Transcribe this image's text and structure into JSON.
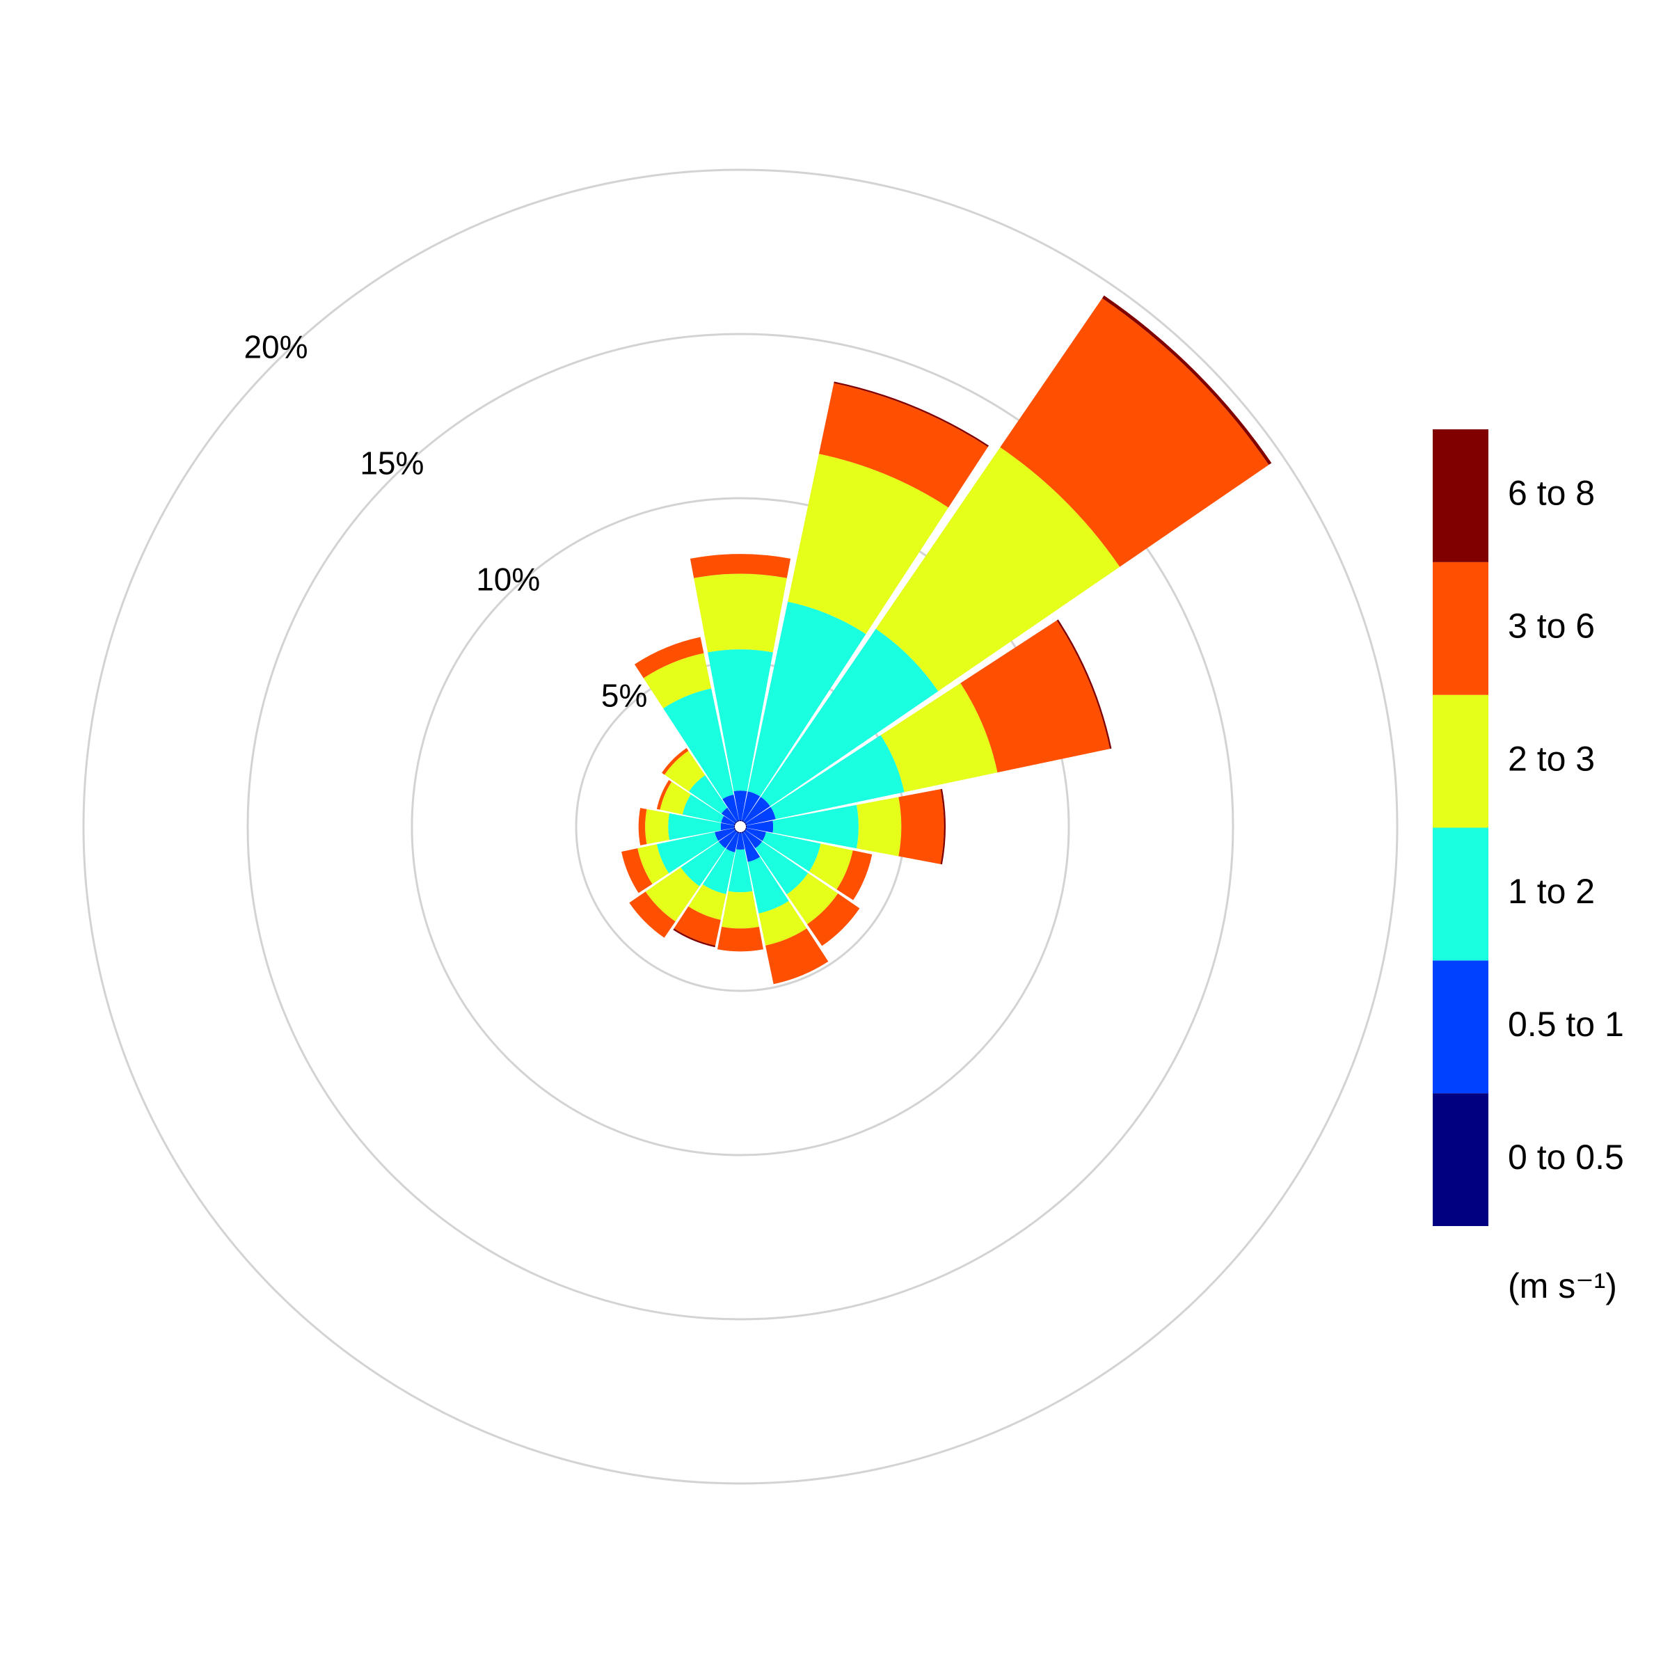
{
  "chart_data": {
    "type": "windrose",
    "x": [
      0,
      22.5,
      45,
      67.5,
      90,
      112.5,
      135,
      157.5,
      180,
      202.5,
      225,
      247.5,
      270,
      292.5,
      315,
      337.5
    ],
    "series": [
      {
        "name": "0 to 0.5",
        "color": "#000080",
        "values": [
          0.2,
          0.2,
          0.2,
          0.2,
          0.2,
          0.2,
          0.2,
          0.2,
          0.2,
          0.2,
          0.2,
          0.2,
          0.2,
          0.2,
          0.2,
          0.2
        ]
      },
      {
        "name": "0.5 to 1",
        "color": "#0040ff",
        "values": [
          0.9,
          0.9,
          0.9,
          0.9,
          0.8,
          0.6,
          0.6,
          0.9,
          0.5,
          0.6,
          0.6,
          0.6,
          0.4,
          0.4,
          0.5,
          0.8
        ]
      },
      {
        "name": "1 to 2",
        "color": "#19ffe0",
        "values": [
          4.3,
          5.9,
          6.2,
          4.0,
          2.6,
          1.7,
          1.7,
          1.6,
          1.3,
          1.3,
          1.4,
          1.8,
          1.6,
          1.2,
          1.2,
          3.3
        ]
      },
      {
        "name": "2 to 3",
        "color": "#e5ff1a",
        "values": [
          2.3,
          4.6,
          6.7,
          2.9,
          1.3,
          1.0,
          1.1,
          1.0,
          1.1,
          0.8,
          1.3,
          0.6,
          0.7,
          0.7,
          0.9,
          1.1
        ]
      },
      {
        "name": "3 to 6",
        "color": "#ff4f00",
        "values": [
          0.6,
          2.2,
          5.5,
          3.5,
          1.3,
          0.6,
          0.8,
          1.2,
          0.7,
          0.8,
          0.6,
          0.5,
          0.2,
          0.1,
          0.1,
          0.5
        ]
      },
      {
        "name": "6 to 8",
        "color": "#800000",
        "values": [
          0,
          0.05,
          0.1,
          0.05,
          0.05,
          0,
          0,
          0,
          0,
          0.05,
          0,
          0,
          0,
          0,
          0,
          0
        ]
      }
    ],
    "ylim": [
      0,
      20
    ],
    "yticks": [
      {
        "value": 5,
        "label": "5%"
      },
      {
        "value": 10,
        "label": "10%"
      },
      {
        "value": 15,
        "label": "15%"
      },
      {
        "value": 20,
        "label": "20%"
      }
    ],
    "grid": true,
    "legend_title": "(m s⁻¹)"
  }
}
